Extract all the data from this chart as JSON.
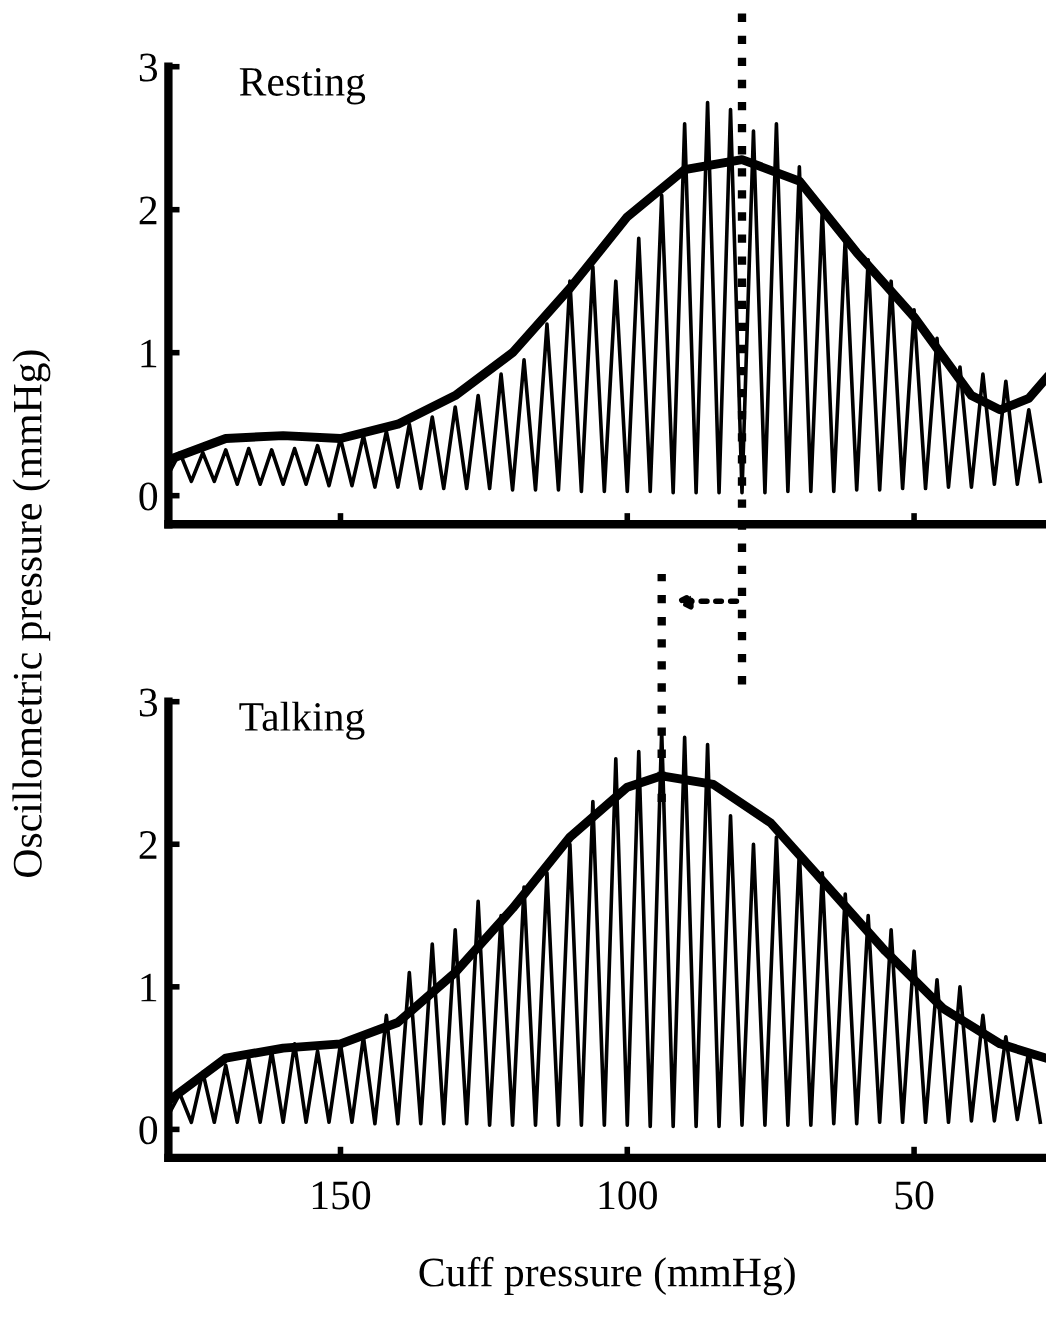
{
  "chart_data": [
    {
      "type": "line",
      "title": "Resting",
      "ylabel": "Oscillometric pressure (mmHg)",
      "xlim": [
        180,
        27
      ],
      "xticks": [
        150,
        100,
        50
      ],
      "ylim": [
        -0.2,
        3
      ],
      "yticks": [
        0,
        1,
        2,
        3
      ],
      "tick_labels": "y",
      "grid": false,
      "legend": false,
      "marker": "none",
      "ref_lines": [
        {
          "axis": "x",
          "value": 80,
          "line_style": "dotted",
          "color": "#000000"
        }
      ],
      "series": [
        {
          "color": "#000000",
          "x": [
            180,
            178,
            176,
            174,
            172,
            170,
            168,
            166,
            164,
            162,
            160,
            158,
            156,
            154,
            152,
            150,
            148,
            146,
            144,
            142,
            140,
            138,
            136,
            134,
            132,
            130,
            128,
            126,
            124,
            122,
            120,
            118,
            116,
            114,
            112,
            110,
            108,
            106,
            104,
            102,
            100,
            98,
            96,
            94,
            92,
            90,
            88,
            86,
            84,
            82,
            80,
            78,
            76,
            74,
            72,
            70,
            68,
            66,
            64,
            62,
            60,
            58,
            56,
            54,
            52,
            50,
            48,
            46,
            44,
            42,
            40,
            38,
            36,
            34,
            32,
            30,
            28
          ],
          "values": [
            0.15,
            0.3,
            0.1,
            0.3,
            0.1,
            0.32,
            0.08,
            0.33,
            0.08,
            0.32,
            0.08,
            0.33,
            0.08,
            0.35,
            0.07,
            0.4,
            0.07,
            0.42,
            0.06,
            0.45,
            0.06,
            0.5,
            0.05,
            0.55,
            0.05,
            0.62,
            0.05,
            0.7,
            0.05,
            0.85,
            0.04,
            0.95,
            0.04,
            1.2,
            0.04,
            1.5,
            0.03,
            1.6,
            0.03,
            1.5,
            0.03,
            1.8,
            0.03,
            2.1,
            0.02,
            2.6,
            0.02,
            2.75,
            0.02,
            2.7,
            0.02,
            2.55,
            0.02,
            2.6,
            0.03,
            2.3,
            0.03,
            2.0,
            0.03,
            1.8,
            0.04,
            1.65,
            0.04,
            1.5,
            0.05,
            1.3,
            0.05,
            1.1,
            0.06,
            0.9,
            0.06,
            0.85,
            0.08,
            0.8,
            0.08,
            0.6,
            0.1
          ]
        },
        {
          "color": "#000000",
          "x": [
            180,
            170,
            160,
            150,
            140,
            130,
            120,
            110,
            100,
            90,
            80,
            70,
            60,
            50,
            40,
            35,
            30,
            27
          ],
          "values": [
            0.25,
            0.4,
            0.42,
            0.4,
            0.5,
            0.7,
            1.0,
            1.45,
            1.95,
            2.28,
            2.35,
            2.2,
            1.7,
            1.25,
            0.7,
            0.6,
            0.68,
            0.82
          ]
        }
      ]
    },
    {
      "type": "line",
      "title": "Talking",
      "xlabel": "Cuff pressure (mmHg)",
      "xlim": [
        180,
        27
      ],
      "xticks": [
        150,
        100,
        50
      ],
      "ylim": [
        -0.2,
        3
      ],
      "yticks": [
        0,
        1,
        2,
        3
      ],
      "grid": false,
      "legend": false,
      "marker": "none",
      "ref_lines": [
        {
          "axis": "x",
          "value": 94,
          "line_style": "dotted",
          "color": "#000000"
        }
      ],
      "series": [
        {
          "color": "#000000",
          "x": [
            180,
            178,
            176,
            174,
            172,
            170,
            168,
            166,
            164,
            162,
            160,
            158,
            156,
            154,
            152,
            150,
            148,
            146,
            144,
            142,
            140,
            138,
            136,
            134,
            132,
            130,
            128,
            126,
            124,
            122,
            120,
            118,
            116,
            114,
            112,
            110,
            108,
            106,
            104,
            102,
            100,
            98,
            96,
            94,
            92,
            90,
            88,
            86,
            84,
            82,
            80,
            78,
            76,
            74,
            72,
            70,
            68,
            66,
            64,
            62,
            60,
            58,
            56,
            54,
            52,
            50,
            48,
            46,
            44,
            42,
            40,
            38,
            36,
            34,
            32,
            30,
            28
          ],
          "values": [
            0.1,
            0.25,
            0.05,
            0.4,
            0.05,
            0.45,
            0.05,
            0.5,
            0.05,
            0.55,
            0.05,
            0.6,
            0.05,
            0.55,
            0.05,
            0.6,
            0.05,
            0.65,
            0.04,
            0.8,
            0.04,
            1.1,
            0.04,
            1.3,
            0.04,
            1.4,
            0.04,
            1.6,
            0.03,
            1.5,
            0.03,
            1.7,
            0.03,
            1.8,
            0.03,
            2.0,
            0.03,
            2.3,
            0.03,
            2.6,
            0.03,
            2.65,
            0.02,
            2.8,
            0.02,
            2.75,
            0.02,
            2.7,
            0.02,
            2.2,
            0.03,
            2.0,
            0.03,
            2.05,
            0.03,
            1.95,
            0.03,
            1.8,
            0.04,
            1.65,
            0.04,
            1.5,
            0.05,
            1.4,
            0.05,
            1.25,
            0.05,
            1.05,
            0.05,
            1.0,
            0.06,
            0.8,
            0.06,
            0.65,
            0.07,
            0.55,
            0.05
          ]
        },
        {
          "color": "#000000",
          "x": [
            180,
            170,
            160,
            150,
            140,
            130,
            120,
            110,
            100,
            94,
            85,
            75,
            65,
            55,
            45,
            35,
            27
          ],
          "values": [
            0.2,
            0.5,
            0.57,
            0.6,
            0.75,
            1.1,
            1.55,
            2.05,
            2.4,
            2.48,
            2.42,
            2.15,
            1.7,
            1.25,
            0.85,
            0.6,
            0.5
          ]
        }
      ]
    }
  ]
}
